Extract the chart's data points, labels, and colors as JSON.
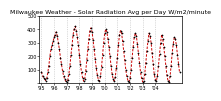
{
  "title": "Milwaukee Weather - Solar Radiation Avg per Day W/m2/minute",
  "background_color": "#ffffff",
  "line_color": "#cc0000",
  "marker_color": "#000000",
  "ylim": [
    0,
    500
  ],
  "values": [
    85,
    55,
    40,
    30,
    20,
    35,
    80,
    130,
    200,
    250,
    280,
    310,
    340,
    360,
    380,
    350,
    300,
    250,
    190,
    140,
    90,
    55,
    30,
    15,
    10,
    25,
    70,
    130,
    210,
    280,
    360,
    400,
    420,
    390,
    340,
    280,
    210,
    140,
    80,
    40,
    15,
    30,
    90,
    170,
    250,
    330,
    390,
    410,
    380,
    320,
    250,
    180,
    110,
    60,
    25,
    15,
    50,
    120,
    210,
    300,
    370,
    400,
    380,
    330,
    270,
    200,
    130,
    70,
    30,
    15,
    45,
    110,
    190,
    280,
    360,
    390,
    370,
    310,
    240,
    170,
    100,
    50,
    20,
    10,
    35,
    100,
    190,
    270,
    340,
    370,
    350,
    290,
    220,
    150,
    80,
    35,
    10,
    20,
    70,
    150,
    240,
    310,
    370,
    350,
    300,
    220,
    140,
    65,
    25,
    15,
    55,
    130,
    215,
    295,
    360,
    330,
    270,
    200,
    130,
    60,
    20,
    10,
    50,
    130,
    220,
    290,
    340,
    330,
    280,
    210,
    145,
    80
  ],
  "ytick_labels": [
    "",
    "100",
    "200",
    "300",
    "400",
    "500"
  ],
  "yticks": [
    0,
    100,
    200,
    300,
    400,
    500
  ],
  "xtick_positions": [
    0,
    12,
    24,
    36,
    48,
    60,
    72,
    84,
    96,
    108
  ],
  "xtick_labels": [
    "'95",
    "'96",
    "'97",
    "'98",
    "'99",
    "'00",
    "'01",
    "'02",
    "'03",
    "'04"
  ],
  "grid_color": "#bbbbbb",
  "title_fontsize": 4.5,
  "tick_fontsize": 3.5
}
